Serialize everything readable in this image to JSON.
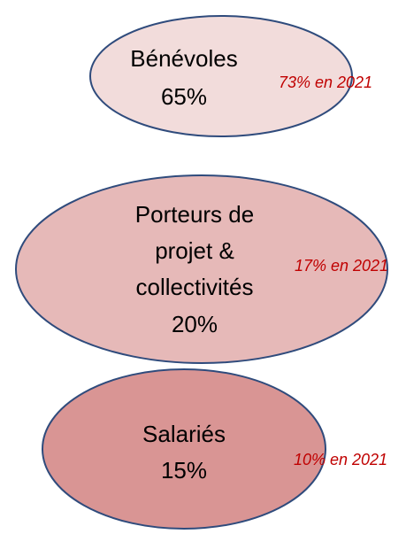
{
  "nodes": [
    {
      "label_lines": [
        "Bénévoles"
      ],
      "value": "65%",
      "note": "73% en 2021"
    },
    {
      "label_lines": [
        "Porteurs de",
        "projet &",
        "collectivités"
      ],
      "value": "20%",
      "note": "17% en 2021"
    },
    {
      "label_lines": [
        "Salariés"
      ],
      "value": "15%",
      "note": "10% en 2021"
    }
  ]
}
